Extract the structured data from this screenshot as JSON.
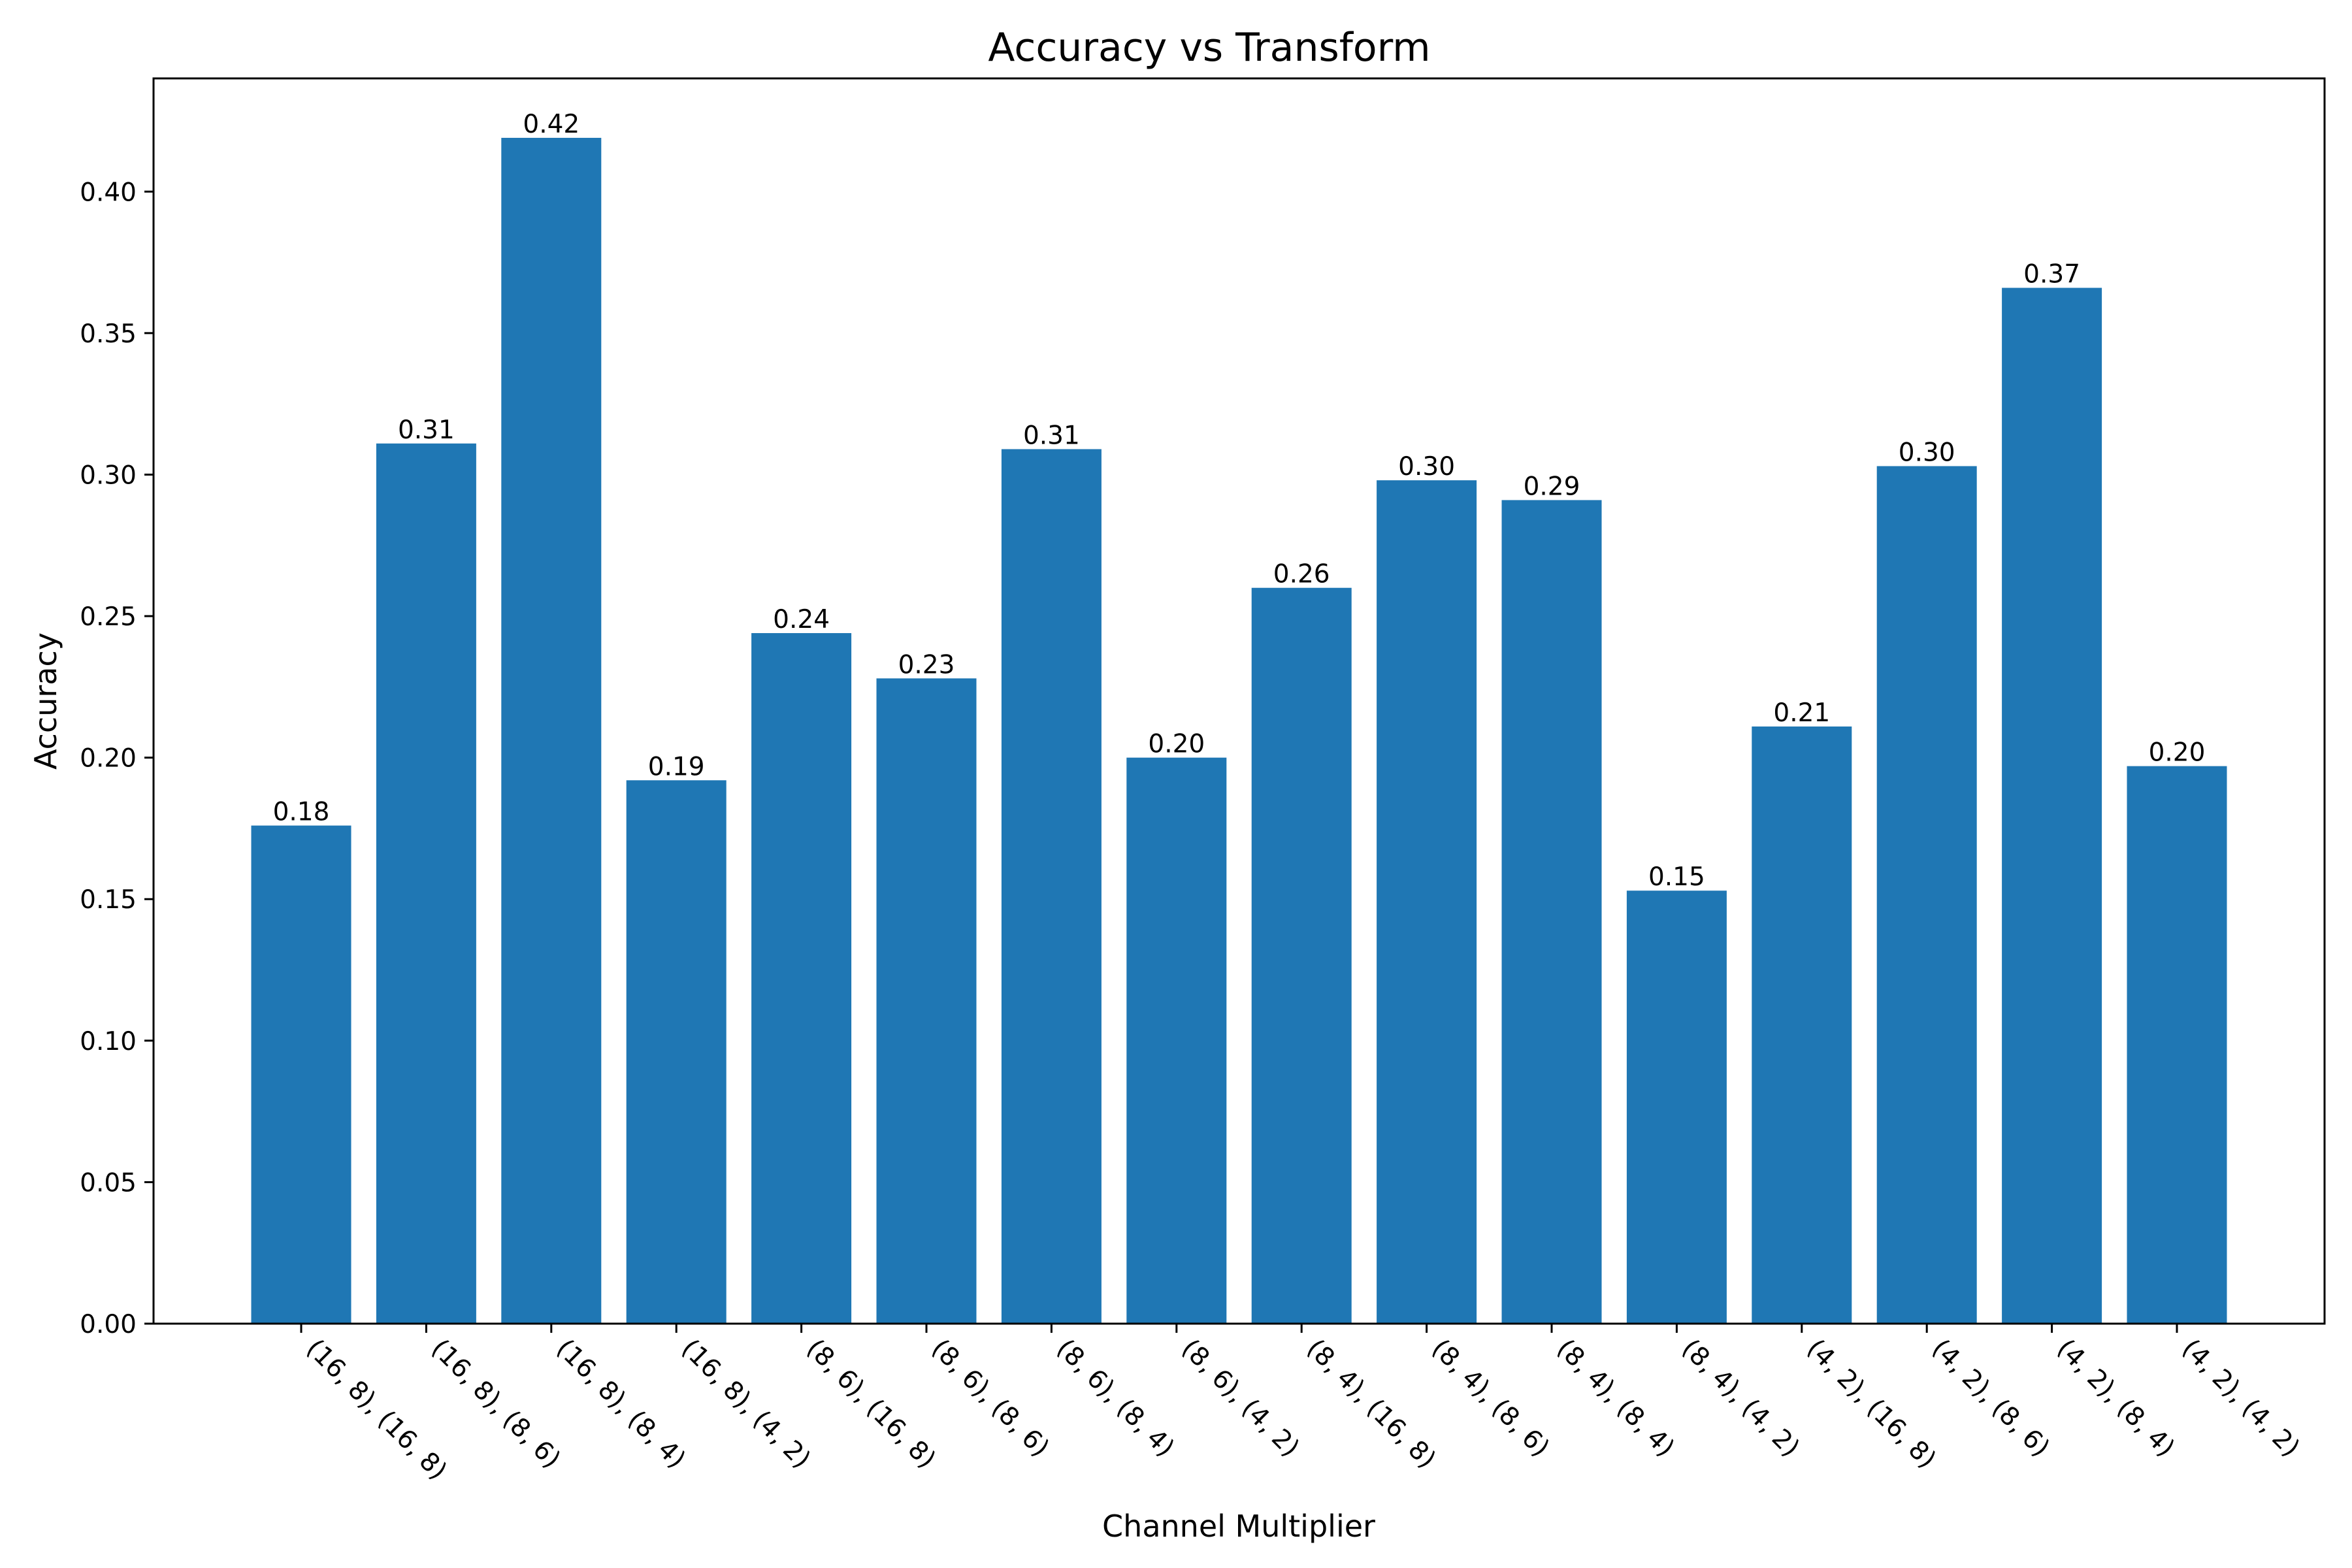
{
  "chart_data": {
    "type": "bar",
    "title": "Accuracy vs Transform",
    "xlabel": "Channel Multiplier",
    "ylabel": "Accuracy",
    "categories": [
      "(16, 8), (16, 8)",
      "(16, 8), (8, 6)",
      "(16, 8), (8, 4)",
      "(16, 8), (4, 2)",
      "(8, 6), (16, 8)",
      "(8, 6), (8, 6)",
      "(8, 6), (8, 4)",
      "(8, 6), (4, 2)",
      "(8, 4), (16, 8)",
      "(8, 4), (8, 6)",
      "(8, 4), (8, 4)",
      "(8, 4), (4, 2)",
      "(4, 2), (16, 8)",
      "(4, 2), (8, 6)",
      "(4, 2), (8, 4)",
      "(4, 2), (4, 2)"
    ],
    "values": [
      0.176,
      0.311,
      0.419,
      0.192,
      0.244,
      0.228,
      0.309,
      0.2,
      0.26,
      0.298,
      0.291,
      0.153,
      0.211,
      0.303,
      0.366,
      0.197
    ],
    "value_labels": [
      "0.18",
      "0.31",
      "0.42",
      "0.19",
      "0.24",
      "0.23",
      "0.31",
      "0.20",
      "0.26",
      "0.30",
      "0.29",
      "0.15",
      "0.21",
      "0.30",
      "0.37",
      "0.20"
    ],
    "yticks": [
      0.0,
      0.05,
      0.1,
      0.15,
      0.2,
      0.25,
      0.3,
      0.35,
      0.4
    ],
    "ytick_labels": [
      "0.00",
      "0.05",
      "0.10",
      "0.15",
      "0.20",
      "0.25",
      "0.30",
      "0.35",
      "0.40"
    ],
    "ylim": [
      0,
      0.44
    ],
    "grid": false,
    "legend": "none",
    "bar_color": "#1f77b4"
  }
}
